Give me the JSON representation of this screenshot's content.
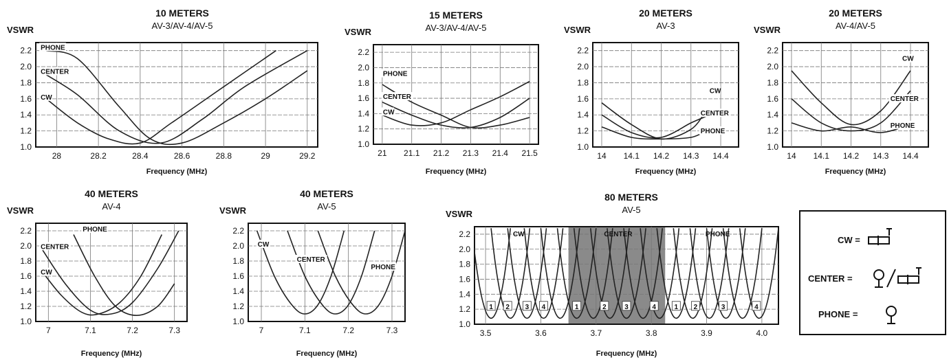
{
  "chart_data": [
    {
      "type": "line",
      "title": "10 METERS",
      "subtitle": "AV-3/AV-4/AV-5",
      "ylabel": "VSWR",
      "xlabel": "Frequency (MHz)",
      "xlim": [
        27.9,
        29.25
      ],
      "ylim": [
        1.0,
        2.3
      ],
      "xticks": [
        28,
        28.2,
        28.4,
        28.6,
        28.8,
        29,
        29.2
      ],
      "xtick_labels": [
        "28",
        "28.2",
        "28.4",
        "28.6",
        "28.8",
        "29",
        "29.2"
      ],
      "yticks": [
        1.0,
        1.2,
        1.4,
        1.6,
        1.8,
        2.0,
        2.2
      ],
      "ytick_labels": [
        "1.0",
        "1.2",
        "1.4",
        "1.6",
        "1.8",
        "2.0",
        "2.2"
      ],
      "series": [
        {
          "name": "PHONE",
          "x": [
            27.95,
            28.1,
            28.3,
            28.45,
            28.6,
            28.8,
            29.0,
            29.2
          ],
          "y": [
            2.2,
            2.1,
            1.5,
            1.1,
            1.05,
            1.3,
            1.6,
            1.95
          ]
        },
        {
          "name": "CENTER",
          "x": [
            27.95,
            28.1,
            28.3,
            28.5,
            28.7,
            28.9,
            29.2
          ],
          "y": [
            1.9,
            1.65,
            1.2,
            1.05,
            1.35,
            1.75,
            2.2
          ]
        },
        {
          "name": "CW",
          "x": [
            27.95,
            28.1,
            28.25,
            28.4,
            28.55,
            28.8,
            29.05
          ],
          "y": [
            1.6,
            1.3,
            1.1,
            1.05,
            1.3,
            1.75,
            2.2
          ]
        }
      ],
      "labels": [
        {
          "text": "PHONE",
          "x": 27.92,
          "y": 2.22
        },
        {
          "text": "CENTER",
          "x": 27.92,
          "y": 1.92
        },
        {
          "text": "CW",
          "x": 27.92,
          "y": 1.6
        }
      ]
    },
    {
      "type": "line",
      "title": "15 METERS",
      "subtitle": "AV-3/AV-4/AV-5",
      "ylabel": "VSWR",
      "xlabel": "Frequency (MHz)",
      "xlim": [
        20.97,
        21.53
      ],
      "ylim": [
        1.0,
        2.3
      ],
      "xticks": [
        21,
        21.1,
        21.2,
        21.3,
        21.4,
        21.5
      ],
      "xtick_labels": [
        "21",
        "21.1",
        "21.2",
        "21.3",
        "21.4",
        "21.5"
      ],
      "yticks": [
        1.0,
        1.2,
        1.4,
        1.6,
        1.8,
        2.0,
        2.2
      ],
      "ytick_labels": [
        "1.0",
        "1.2",
        "1.4",
        "1.6",
        "1.8",
        "2.0",
        "2.2"
      ],
      "series": [
        {
          "name": "PHONE",
          "x": [
            21.0,
            21.1,
            21.2,
            21.3,
            21.4,
            21.5
          ],
          "y": [
            1.78,
            1.55,
            1.38,
            1.22,
            1.25,
            1.35
          ]
        },
        {
          "name": "CENTER",
          "x": [
            21.0,
            21.1,
            21.2,
            21.3,
            21.4,
            21.5
          ],
          "y": [
            1.55,
            1.38,
            1.25,
            1.22,
            1.35,
            1.6
          ]
        },
        {
          "name": "CW",
          "x": [
            21.0,
            21.1,
            21.2,
            21.3,
            21.4,
            21.5
          ],
          "y": [
            1.38,
            1.25,
            1.28,
            1.45,
            1.62,
            1.82
          ]
        }
      ],
      "labels": [
        {
          "text": "PHONE",
          "x": 21.0,
          "y": 1.9
        },
        {
          "text": "CENTER",
          "x": 21.0,
          "y": 1.6
        },
        {
          "text": "CW",
          "x": 21.0,
          "y": 1.4
        }
      ]
    },
    {
      "type": "line",
      "title": "20 METERS",
      "subtitle": "AV-3",
      "ylabel": "VSWR",
      "xlabel": "Frequency (MHz)",
      "xlim": [
        13.97,
        14.46
      ],
      "ylim": [
        1.0,
        2.3
      ],
      "xticks": [
        14,
        14.1,
        14.2,
        14.3,
        14.4
      ],
      "xtick_labels": [
        "14",
        "14.1",
        "14.2",
        "14.3",
        "14.4"
      ],
      "yticks": [
        1.0,
        1.2,
        1.4,
        1.6,
        1.8,
        2.0,
        2.2
      ],
      "ytick_labels": [
        "1.0",
        "1.2",
        "1.4",
        "1.6",
        "1.8",
        "2.0",
        "2.2"
      ],
      "series": [
        {
          "name": "CW",
          "x": [
            14.0,
            14.1,
            14.2,
            14.3,
            14.35
          ],
          "y": [
            1.55,
            1.28,
            1.1,
            1.22,
            1.45
          ]
        },
        {
          "name": "CENTER",
          "x": [
            14.0,
            14.1,
            14.2,
            14.3,
            14.35
          ],
          "y": [
            1.4,
            1.18,
            1.12,
            1.3,
            1.38
          ]
        },
        {
          "name": "PHONE",
          "x": [
            14.0,
            14.1,
            14.2,
            14.3,
            14.35
          ],
          "y": [
            1.25,
            1.12,
            1.1,
            1.12,
            1.2
          ]
        }
      ],
      "labels": [
        {
          "text": "CW",
          "x": 14.36,
          "y": 1.68
        },
        {
          "text": "CENTER",
          "x": 14.33,
          "y": 1.4
        },
        {
          "text": "PHONE",
          "x": 14.33,
          "y": 1.18
        }
      ]
    },
    {
      "type": "line",
      "title": "20 METERS",
      "subtitle": "AV-4/AV-5",
      "ylabel": "VSWR",
      "xlabel": "Frequency (MHz)",
      "xlim": [
        13.97,
        14.46
      ],
      "ylim": [
        1.0,
        2.3
      ],
      "xticks": [
        14,
        14.1,
        14.2,
        14.3,
        14.4
      ],
      "xtick_labels": [
        "14",
        "14.1",
        "14.2",
        "14.3",
        "14.4"
      ],
      "yticks": [
        1.0,
        1.2,
        1.4,
        1.6,
        1.8,
        2.0,
        2.2
      ],
      "ytick_labels": [
        "1.0",
        "1.2",
        "1.4",
        "1.6",
        "1.8",
        "2.0",
        "2.2"
      ],
      "series": [
        {
          "name": "CW",
          "x": [
            14.0,
            14.1,
            14.2,
            14.3,
            14.4
          ],
          "y": [
            1.95,
            1.55,
            1.28,
            1.45,
            1.95
          ]
        },
        {
          "name": "CENTER",
          "x": [
            14.0,
            14.1,
            14.2,
            14.3,
            14.4
          ],
          "y": [
            1.6,
            1.3,
            1.2,
            1.3,
            1.7
          ]
        },
        {
          "name": "PHONE",
          "x": [
            14.0,
            14.1,
            14.2,
            14.3,
            14.4
          ],
          "y": [
            1.3,
            1.2,
            1.25,
            1.18,
            1.28
          ]
        }
      ],
      "labels": [
        {
          "text": "CW",
          "x": 14.37,
          "y": 2.08
        },
        {
          "text": "CENTER",
          "x": 14.33,
          "y": 1.58
        },
        {
          "text": "PHONE",
          "x": 14.33,
          "y": 1.25
        }
      ]
    },
    {
      "type": "line",
      "title": "40 METERS",
      "subtitle": "AV-4",
      "ylabel": "VSWR",
      "xlabel": "Frequency (MHz)",
      "xlim": [
        6.97,
        7.33
      ],
      "ylim": [
        1.0,
        2.3
      ],
      "xticks": [
        7,
        7.1,
        7.2,
        7.3
      ],
      "xtick_labels": [
        "7",
        "7.1",
        "7.2",
        "7.3"
      ],
      "yticks": [
        1.0,
        1.2,
        1.4,
        1.6,
        1.8,
        2.0,
        2.2
      ],
      "ytick_labels": [
        "1.0",
        "1.2",
        "1.4",
        "1.6",
        "1.8",
        "2.0",
        "2.2"
      ],
      "series": [
        {
          "name": "CW",
          "x": [
            6.98,
            7.03,
            7.08,
            7.12,
            7.17,
            7.22,
            7.27
          ],
          "y": [
            1.7,
            1.35,
            1.12,
            1.1,
            1.25,
            1.6,
            2.15
          ]
        },
        {
          "name": "CENTER",
          "x": [
            6.98,
            7.04,
            7.1,
            7.15,
            7.2,
            7.26,
            7.31
          ],
          "y": [
            2.0,
            1.5,
            1.15,
            1.1,
            1.25,
            1.7,
            2.2
          ]
        },
        {
          "name": "PHONE",
          "x": [
            7.06,
            7.11,
            7.16,
            7.21,
            7.26,
            7.3
          ],
          "y": [
            2.15,
            1.6,
            1.2,
            1.08,
            1.2,
            1.5
          ]
        }
      ],
      "labels": [
        {
          "text": "PHONE",
          "x": 7.08,
          "y": 2.2
        },
        {
          "text": "CENTER",
          "x": 6.98,
          "y": 1.97
        },
        {
          "text": "CW",
          "x": 6.98,
          "y": 1.63
        }
      ]
    },
    {
      "type": "line",
      "title": "40 METERS",
      "subtitle": "AV-5",
      "ylabel": "VSWR",
      "xlabel": "Frequency (MHz)",
      "xlim": [
        6.97,
        7.33
      ],
      "ylim": [
        1.0,
        2.3
      ],
      "xticks": [
        7,
        7.1,
        7.2,
        7.3
      ],
      "xtick_labels": [
        "7",
        "7.1",
        "7.2",
        "7.3"
      ],
      "yticks": [
        1.0,
        1.2,
        1.4,
        1.6,
        1.8,
        2.0,
        2.2
      ],
      "ytick_labels": [
        "1.0",
        "1.2",
        "1.4",
        "1.6",
        "1.8",
        "2.0",
        "2.2"
      ],
      "series": [
        {
          "name": "CW",
          "x": [
            6.99,
            7.03,
            7.07,
            7.1,
            7.13,
            7.16,
            7.19
          ],
          "y": [
            2.2,
            1.6,
            1.22,
            1.1,
            1.22,
            1.6,
            2.2
          ]
        },
        {
          "name": "CENTER",
          "x": [
            7.06,
            7.1,
            7.14,
            7.17,
            7.2,
            7.23,
            7.26
          ],
          "y": [
            2.2,
            1.6,
            1.22,
            1.1,
            1.22,
            1.6,
            2.2
          ]
        },
        {
          "name": "PHONE",
          "x": [
            7.13,
            7.17,
            7.21,
            7.24,
            7.27,
            7.3,
            7.33
          ],
          "y": [
            2.2,
            1.6,
            1.22,
            1.1,
            1.22,
            1.6,
            2.2
          ]
        }
      ],
      "labels": [
        {
          "text": "CW",
          "x": 6.99,
          "y": 2.0
        },
        {
          "text": "CENTER",
          "x": 7.08,
          "y": 1.8
        },
        {
          "text": "PHONE",
          "x": 7.25,
          "y": 1.7
        }
      ]
    },
    {
      "type": "line",
      "title": "80 METERS",
      "subtitle": "AV-5",
      "ylabel": "VSWR",
      "xlabel": "Frequency (MHz)",
      "xlim": [
        3.48,
        4.03
      ],
      "ylim": [
        1.0,
        2.3
      ],
      "xticks": [
        3.5,
        3.6,
        3.7,
        3.8,
        3.9,
        4.0
      ],
      "xtick_labels": [
        "3.5",
        "3.6",
        "3.7",
        "3.8",
        "3.9",
        "4.0"
      ],
      "yticks": [
        1.0,
        1.2,
        1.4,
        1.6,
        1.8,
        2.0,
        2.2
      ],
      "ytick_labels": [
        "1.0",
        "1.2",
        "1.4",
        "1.6",
        "1.8",
        "2.0",
        "2.2"
      ],
      "shaded_region": [
        3.65,
        3.825
      ],
      "resonance_centers": [
        3.51,
        3.545,
        3.575,
        3.605,
        3.635,
        3.665,
        3.695,
        3.725,
        3.755,
        3.785,
        3.815,
        3.845,
        3.875,
        3.905,
        3.935,
        3.965,
        3.995
      ],
      "curve_halfwidth": 0.035,
      "band_labels": [
        "CW",
        "CENTER",
        "PHONE"
      ],
      "band_label_x": [
        3.56,
        3.74,
        3.92
      ],
      "markers": [
        {
          "text": "1",
          "x": 3.51
        },
        {
          "text": "2",
          "x": 3.54
        },
        {
          "text": "3",
          "x": 3.575
        },
        {
          "text": "4",
          "x": 3.605
        },
        {
          "text": "1",
          "x": 3.665
        },
        {
          "text": "2",
          "x": 3.715
        },
        {
          "text": "3",
          "x": 3.755
        },
        {
          "text": "4",
          "x": 3.805
        },
        {
          "text": "1",
          "x": 3.845
        },
        {
          "text": "2",
          "x": 3.88
        },
        {
          "text": "3",
          "x": 3.93
        },
        {
          "text": "4",
          "x": 3.99
        }
      ]
    }
  ],
  "legend": {
    "items": [
      {
        "text": "CW =",
        "symbol": "coil-switch"
      },
      {
        "text": "CENTER =",
        "symbol": "jumper-or-coil-switch"
      },
      {
        "text": "PHONE =",
        "symbol": "jumper"
      }
    ]
  }
}
